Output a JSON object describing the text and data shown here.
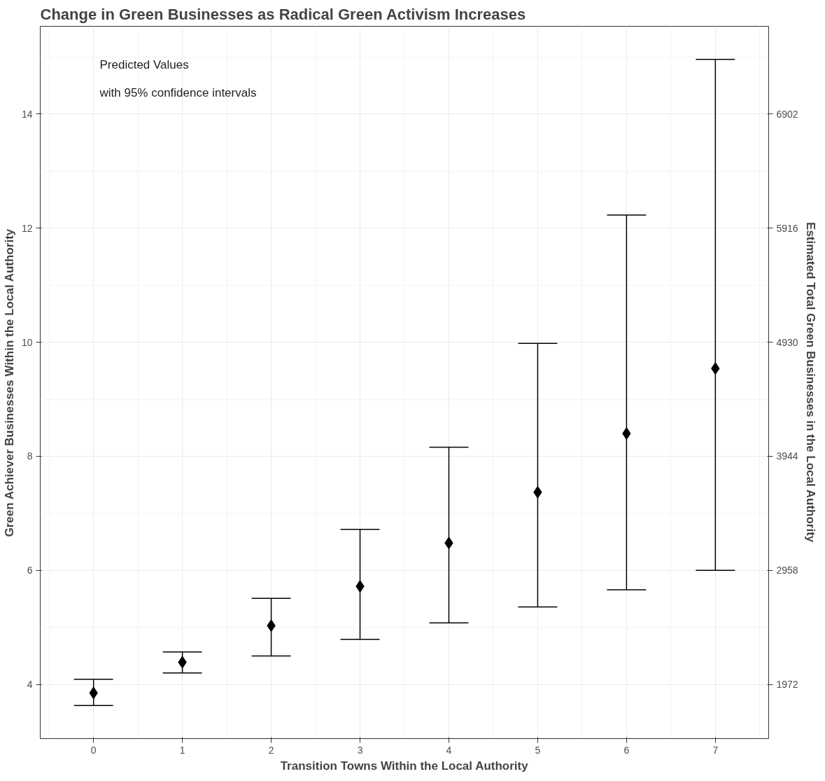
{
  "chart_data": {
    "type": "scatter",
    "title": "Change in Green Businesses as Radical Green Activism Increases",
    "xlabel": "Transition Towns Within the Local Authority",
    "ylabel": "Green Achiever Businesses Within the Local Authority",
    "y2label": "Estimated Total Green Businesses in the Local Authority",
    "annotations": [
      "Predicted Values",
      "with 95% confidence intervals"
    ],
    "x": [
      0,
      1,
      2,
      3,
      4,
      5,
      6,
      7
    ],
    "color": "#000000",
    "values": [
      3.85,
      4.39,
      5.03,
      5.72,
      6.48,
      7.37,
      8.4,
      9.54
    ],
    "errors": [
      [
        3.63,
        4.09
      ],
      [
        4.2,
        4.57
      ],
      [
        4.5,
        5.51
      ],
      [
        4.79,
        6.72
      ],
      [
        5.08,
        8.16
      ],
      [
        5.36,
        9.98
      ],
      [
        5.66,
        12.23
      ],
      [
        6.0,
        14.96
      ]
    ],
    "xlim": [
      -0.6,
      7.6
    ],
    "xticks": [
      0,
      1,
      2,
      3,
      4,
      5,
      6,
      7
    ],
    "ylim": [
      3.05,
      15.54
    ],
    "yticks": [
      4,
      6,
      8,
      10,
      12,
      14
    ],
    "y2lim": [
      1504,
      7661
    ],
    "y2ticks": [
      1972,
      2958,
      3944,
      4930,
      5916,
      6902
    ],
    "grid": true,
    "marker": "diamond"
  }
}
